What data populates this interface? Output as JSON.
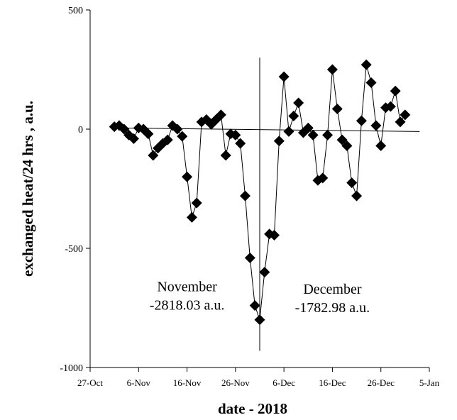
{
  "chart_data": {
    "type": "scatter",
    "xlabel": "date  -  2018",
    "ylabel": "exchanged heat/24 hrs ,  a.u.",
    "x_range": [
      "2018-10-27",
      "2019-01-05"
    ],
    "x_ticks": [
      "27-Oct",
      "6-Nov",
      "16-Nov",
      "26-Nov",
      "6-Dec",
      "16-Dec",
      "26-Dec",
      "5-Jan"
    ],
    "ylim": [
      -1000,
      500
    ],
    "y_ticks": [
      "500",
      "0",
      "-500",
      "-1000"
    ],
    "y_tick_values": [
      500,
      0,
      -500,
      -1000
    ],
    "grid": false,
    "marker": "diamond",
    "color": "#000000",
    "series": [
      {
        "x": [
          "2018-11-01",
          "2018-11-02",
          "2018-11-03",
          "2018-11-04",
          "2018-11-05",
          "2018-11-06",
          "2018-11-07",
          "2018-11-08",
          "2018-11-09",
          "2018-11-10",
          "2018-11-11",
          "2018-11-12",
          "2018-11-13",
          "2018-11-14",
          "2018-11-15",
          "2018-11-16",
          "2018-11-17",
          "2018-11-18",
          "2018-11-19",
          "2018-11-20",
          "2018-11-21",
          "2018-11-22",
          "2018-11-23",
          "2018-11-24",
          "2018-11-25",
          "2018-11-26",
          "2018-11-27",
          "2018-11-28",
          "2018-11-29",
          "2018-11-30",
          "2018-12-01",
          "2018-12-02",
          "2018-12-03",
          "2018-12-04",
          "2018-12-05",
          "2018-12-06",
          "2018-12-07",
          "2018-12-08",
          "2018-12-09",
          "2018-12-10",
          "2018-12-11",
          "2018-12-12",
          "2018-12-13",
          "2018-12-14",
          "2018-12-15",
          "2018-12-16",
          "2018-12-17",
          "2018-12-18",
          "2018-12-19",
          "2018-12-20",
          "2018-12-21",
          "2018-12-22",
          "2018-12-23",
          "2018-12-24",
          "2018-12-25",
          "2018-12-26",
          "2018-12-27",
          "2018-12-28",
          "2018-12-29",
          "2018-12-30",
          "2018-12-31"
        ],
        "y": [
          10,
          15,
          0,
          -25,
          -40,
          5,
          0,
          -20,
          -110,
          -80,
          -60,
          -45,
          15,
          0,
          -30,
          -200,
          -370,
          -310,
          30,
          40,
          20,
          40,
          60,
          -110,
          -20,
          -25,
          -60,
          -280,
          -540,
          -740,
          -800,
          -600,
          -440,
          -445,
          -50,
          220,
          -10,
          55,
          110,
          -15,
          5,
          -25,
          -215,
          -205,
          -25,
          250,
          85,
          -45,
          -70,
          -225,
          -280,
          35,
          270,
          195,
          15,
          -70,
          90,
          95,
          160,
          30,
          60
        ]
      }
    ],
    "trendline": {
      "x": [
        "2018-11-01",
        "2019-01-03"
      ],
      "y": [
        5,
        -10
      ]
    },
    "divider": {
      "x": "2018-12-01",
      "y_range": [
        300,
        -930
      ]
    },
    "annotations": [
      {
        "lines": [
          "November",
          "-2818.03 a.u."
        ],
        "anchor": {
          "x": "2018-11-16",
          "y": -680
        }
      },
      {
        "lines": [
          "December",
          "-1782.98 a.u."
        ],
        "anchor": {
          "x": "2018-12-16",
          "y": -690
        }
      }
    ]
  }
}
